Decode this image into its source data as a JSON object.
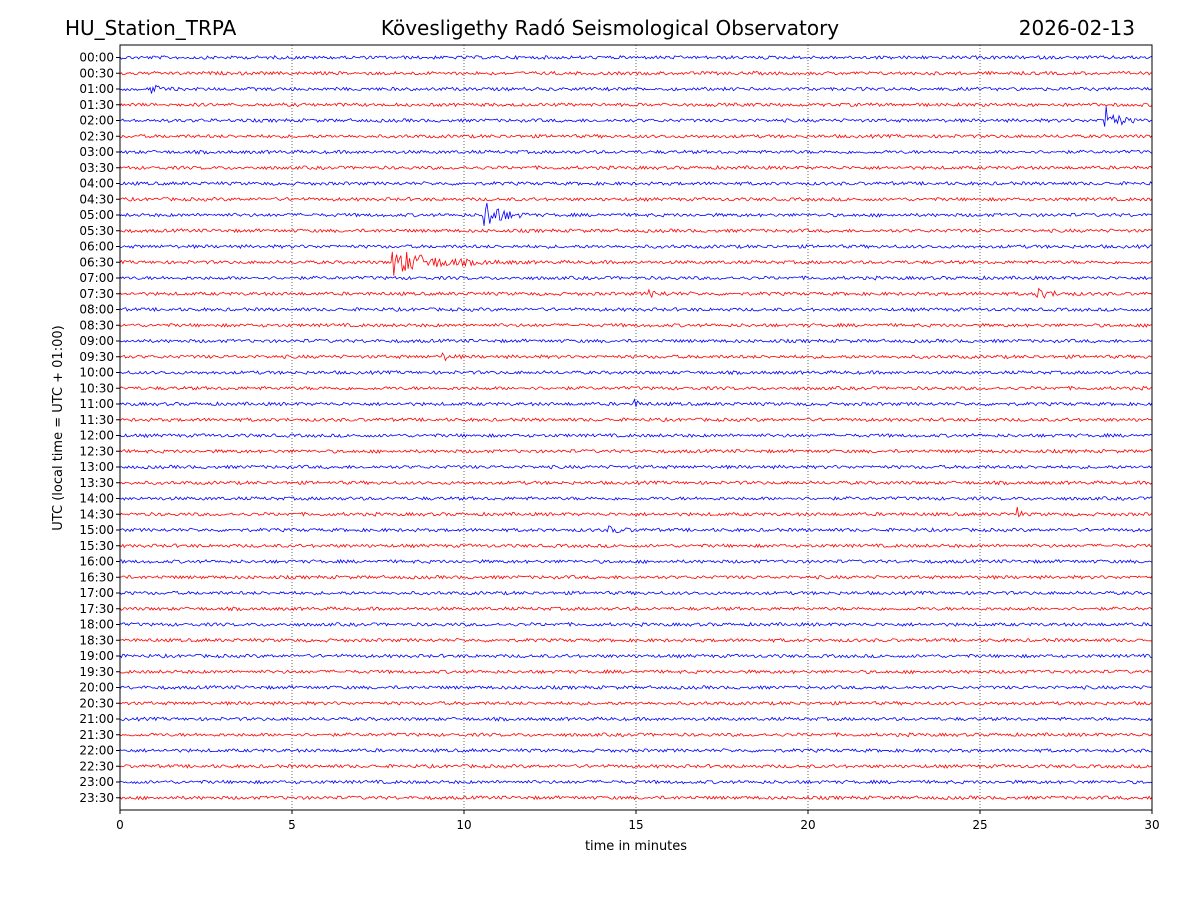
{
  "chart_data": {
    "type": "line",
    "station": "HU_Station_TRPA",
    "title": "Kövesligethy Radó Seismological Observatory",
    "date": "2026-02-13",
    "xlabel": "time in minutes",
    "ylabel": "UTC (local time = UTC + 01:00)",
    "xlim": [
      0,
      30
    ],
    "xticks": [
      0,
      5,
      10,
      15,
      20,
      25,
      30
    ],
    "grid_x": true,
    "colors": {
      "even_trace": "#0000ff",
      "odd_trace": "#ff0000",
      "axis": "#000000"
    },
    "rows": [
      "00:00",
      "00:30",
      "01:00",
      "01:30",
      "02:00",
      "02:30",
      "03:00",
      "03:30",
      "04:00",
      "04:30",
      "05:00",
      "05:30",
      "06:00",
      "06:30",
      "07:00",
      "07:30",
      "08:00",
      "08:30",
      "09:00",
      "09:30",
      "10:00",
      "10:30",
      "11:00",
      "11:30",
      "12:00",
      "12:30",
      "13:00",
      "13:30",
      "14:00",
      "14:30",
      "15:00",
      "15:30",
      "16:00",
      "16:30",
      "17:00",
      "17:30",
      "18:00",
      "18:30",
      "19:00",
      "19:30",
      "20:00",
      "20:30",
      "21:00",
      "21:30",
      "22:00",
      "22:30",
      "23:00",
      "23:30"
    ],
    "events": [
      {
        "row": "01:00",
        "start_min": 0.9,
        "amplitude": 0.35,
        "duration_min": 0.8
      },
      {
        "row": "02:00",
        "start_min": 28.6,
        "amplitude": 1.2,
        "duration_min": 1.2
      },
      {
        "row": "05:00",
        "start_min": 10.55,
        "amplitude": 1.5,
        "duration_min": 1.5
      },
      {
        "row": "06:30",
        "start_min": 7.9,
        "amplitude": 1.0,
        "duration_min": 4.0
      },
      {
        "row": "07:30",
        "start_min": 26.6,
        "amplitude": 0.4,
        "duration_min": 1.5
      },
      {
        "row": "07:30",
        "start_min": 15.3,
        "amplitude": 0.25,
        "duration_min": 1.5
      },
      {
        "row": "09:30",
        "start_min": 9.3,
        "amplitude": 0.35,
        "duration_min": 0.8
      },
      {
        "row": "11:00",
        "start_min": 14.9,
        "amplitude": 0.35,
        "duration_min": 0.6
      },
      {
        "row": "14:30",
        "start_min": 26.05,
        "amplitude": 0.7,
        "duration_min": 0.3
      },
      {
        "row": "15:00",
        "start_min": 14.2,
        "amplitude": 0.25,
        "duration_min": 1.2
      }
    ]
  }
}
